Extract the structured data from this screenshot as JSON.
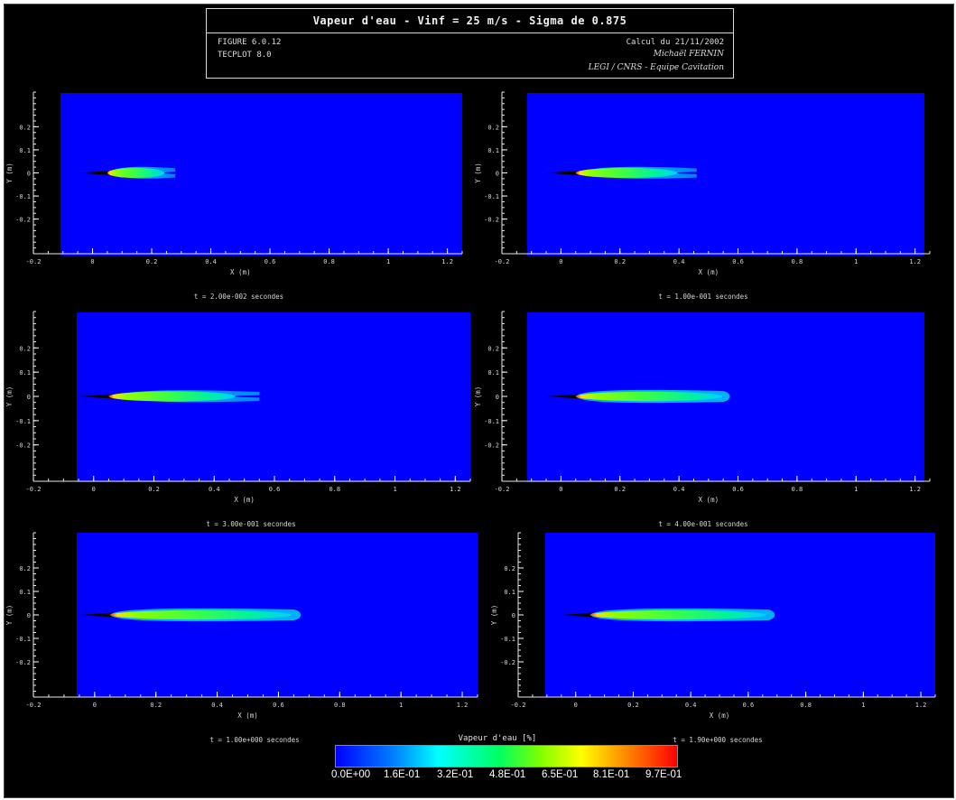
{
  "header": {
    "title": "Vapeur d'eau - Vinf = 25 m/s - Sigma de 0.875",
    "line1_left": "FIGURE 6.0.12",
    "line1_right": "Calcul du 21/11/2002",
    "line2_left": "TECPLOT 8.0",
    "line2_right": "Michaël FERNIN",
    "line3_right": "LEGI / CNRS - Equipe Cavitation"
  },
  "colorbar": {
    "title": "Vapeur d'eau [%]",
    "labels": [
      "0.0E+00",
      "1.6E-01",
      "3.2E-01",
      "4.8E-01",
      "6.5E-01",
      "8.1E-01",
      "9.7E-01"
    ]
  },
  "chart_data": [
    {
      "type": "heatmap",
      "title": "t = 2.00e-002 secondes",
      "xlabel": "X (m)",
      "ylabel": "Y (m)",
      "xlim": [
        -0.2,
        1.25
      ],
      "ylim": [
        -0.35,
        0.35
      ],
      "xticks": [
        "-0.2",
        "0",
        "0.2",
        "0.4",
        "0.6",
        "0.8",
        "1",
        "1.2"
      ],
      "yticks": [
        "0.2",
        "0.1",
        "0",
        "-0.1",
        "-0.2"
      ],
      "cavity": {
        "x_start": 0.05,
        "x_end": 0.28,
        "split": true
      }
    },
    {
      "type": "heatmap",
      "title": "t = 1.00e-001 secondes",
      "xlabel": "X (m)",
      "ylabel": "Y (m)",
      "xlim": [
        -0.2,
        1.25
      ],
      "ylim": [
        -0.35,
        0.35
      ],
      "xticks": [
        "-0.2",
        "0",
        "0.2",
        "0.4",
        "0.6",
        "0.8",
        "1",
        "1.2"
      ],
      "yticks": [
        "0.2",
        "0.1",
        "0",
        "-0.1",
        "-0.2"
      ],
      "cavity": {
        "x_start": 0.05,
        "x_end": 0.46,
        "split": true
      }
    },
    {
      "type": "heatmap",
      "title": "t = 3.00e-001 secondes",
      "xlabel": "X (m)",
      "ylabel": "Y (m)",
      "xlim": [
        -0.2,
        1.25
      ],
      "ylim": [
        -0.35,
        0.35
      ],
      "xticks": [
        "-0.2",
        "0",
        "0.2",
        "0.4",
        "0.6",
        "0.8",
        "1",
        "1.2"
      ],
      "yticks": [
        "0.2",
        "0.1",
        "0",
        "-0.1",
        "-0.2"
      ],
      "cavity": {
        "x_start": 0.05,
        "x_end": 0.55,
        "split": true
      }
    },
    {
      "type": "heatmap",
      "title": "t = 4.00e-001 secondes",
      "xlabel": "X (m)",
      "ylabel": "Y (m)",
      "xlim": [
        -0.2,
        1.25
      ],
      "ylim": [
        -0.35,
        0.35
      ],
      "xticks": [
        "-0.2",
        "0",
        "0.2",
        "0.4",
        "0.6",
        "0.8",
        "1",
        "1.2"
      ],
      "yticks": [
        "0.2",
        "0.1",
        "0",
        "-0.1",
        "-0.2"
      ],
      "cavity": {
        "x_start": 0.05,
        "x_end": 0.58,
        "split": false
      }
    },
    {
      "type": "heatmap",
      "title": "t = 1.00e+000 secondes",
      "xlabel": "X (m)",
      "ylabel": "Y (m)",
      "xlim": [
        -0.2,
        1.25
      ],
      "ylim": [
        -0.35,
        0.35
      ],
      "xticks": [
        "-0.2",
        "0",
        "0.2",
        "0.4",
        "0.6",
        "0.8",
        "1",
        "1.2"
      ],
      "yticks": [
        "0.2",
        "0.1",
        "0",
        "-0.1",
        "-0.2"
      ],
      "cavity": {
        "x_start": 0.05,
        "x_end": 0.68,
        "split": false
      }
    },
    {
      "type": "heatmap",
      "title": "t = 1.90e+000 secondes",
      "xlabel": "X (m)",
      "ylabel": "Y (m)",
      "xlim": [
        -0.2,
        1.25
      ],
      "ylim": [
        -0.35,
        0.35
      ],
      "xticks": [
        "-0.2",
        "0",
        "0.2",
        "0.4",
        "0.6",
        "0.8",
        "1",
        "1.2"
      ],
      "yticks": [
        "0.2",
        "0.1",
        "0",
        "-0.1",
        "-0.2"
      ],
      "cavity": {
        "x_start": 0.05,
        "x_end": 0.7,
        "split": false
      }
    }
  ]
}
